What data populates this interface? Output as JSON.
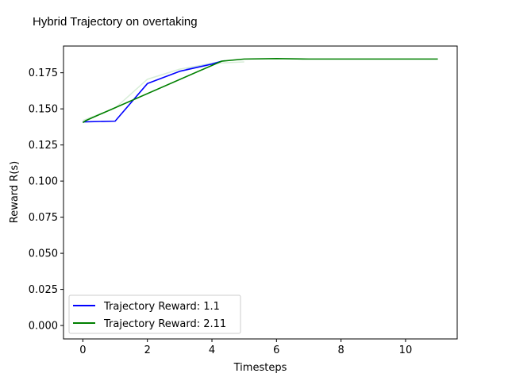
{
  "chart_data": {
    "type": "line",
    "title": "Hybrid Trajectory on overtaking",
    "xlabel": "Timesteps",
    "ylabel": "Reward R(s)",
    "xlim": [
      -0.6,
      11.6
    ],
    "ylim": [
      -0.0093,
      0.1935
    ],
    "x_ticks": [
      0,
      2,
      4,
      6,
      8,
      10
    ],
    "y_ticks": [
      0.0,
      0.025,
      0.05,
      0.075,
      0.1,
      0.125,
      0.15,
      0.175
    ],
    "y_tick_labels": [
      "0.000",
      "0.025",
      "0.050",
      "0.075",
      "0.100",
      "0.125",
      "0.150",
      "0.175"
    ],
    "grid": false,
    "legend_position": "lower-left",
    "series": [
      {
        "name": "Trajectory Reward: 1.1",
        "color": "#0000ff",
        "x": [
          0,
          1,
          2,
          3,
          4,
          4.3
        ],
        "y": [
          0.141,
          0.1415,
          0.1675,
          0.176,
          0.181,
          0.183
        ]
      },
      {
        "name": "Trajectory Reward: 2.11",
        "color": "#008000",
        "x": [
          0,
          0.1,
          4.3,
          5,
          6,
          7,
          8,
          9,
          10,
          11
        ],
        "y": [
          0.1405,
          0.142,
          0.183,
          0.1845,
          0.1848,
          0.1845,
          0.1845,
          0.1845,
          0.1845,
          0.1845
        ]
      }
    ],
    "faint_series": [
      {
        "color": "#d8eed8",
        "x": [
          0,
          1,
          2,
          3,
          4,
          5
        ],
        "y": [
          0.142,
          0.1505,
          0.1705,
          0.1775,
          0.1815,
          0.1825
        ]
      },
      {
        "color": "#a9c9f0",
        "x": [
          3.2,
          4,
          4.4
        ],
        "y": [
          0.1775,
          0.1815,
          0.1835
        ]
      }
    ]
  }
}
